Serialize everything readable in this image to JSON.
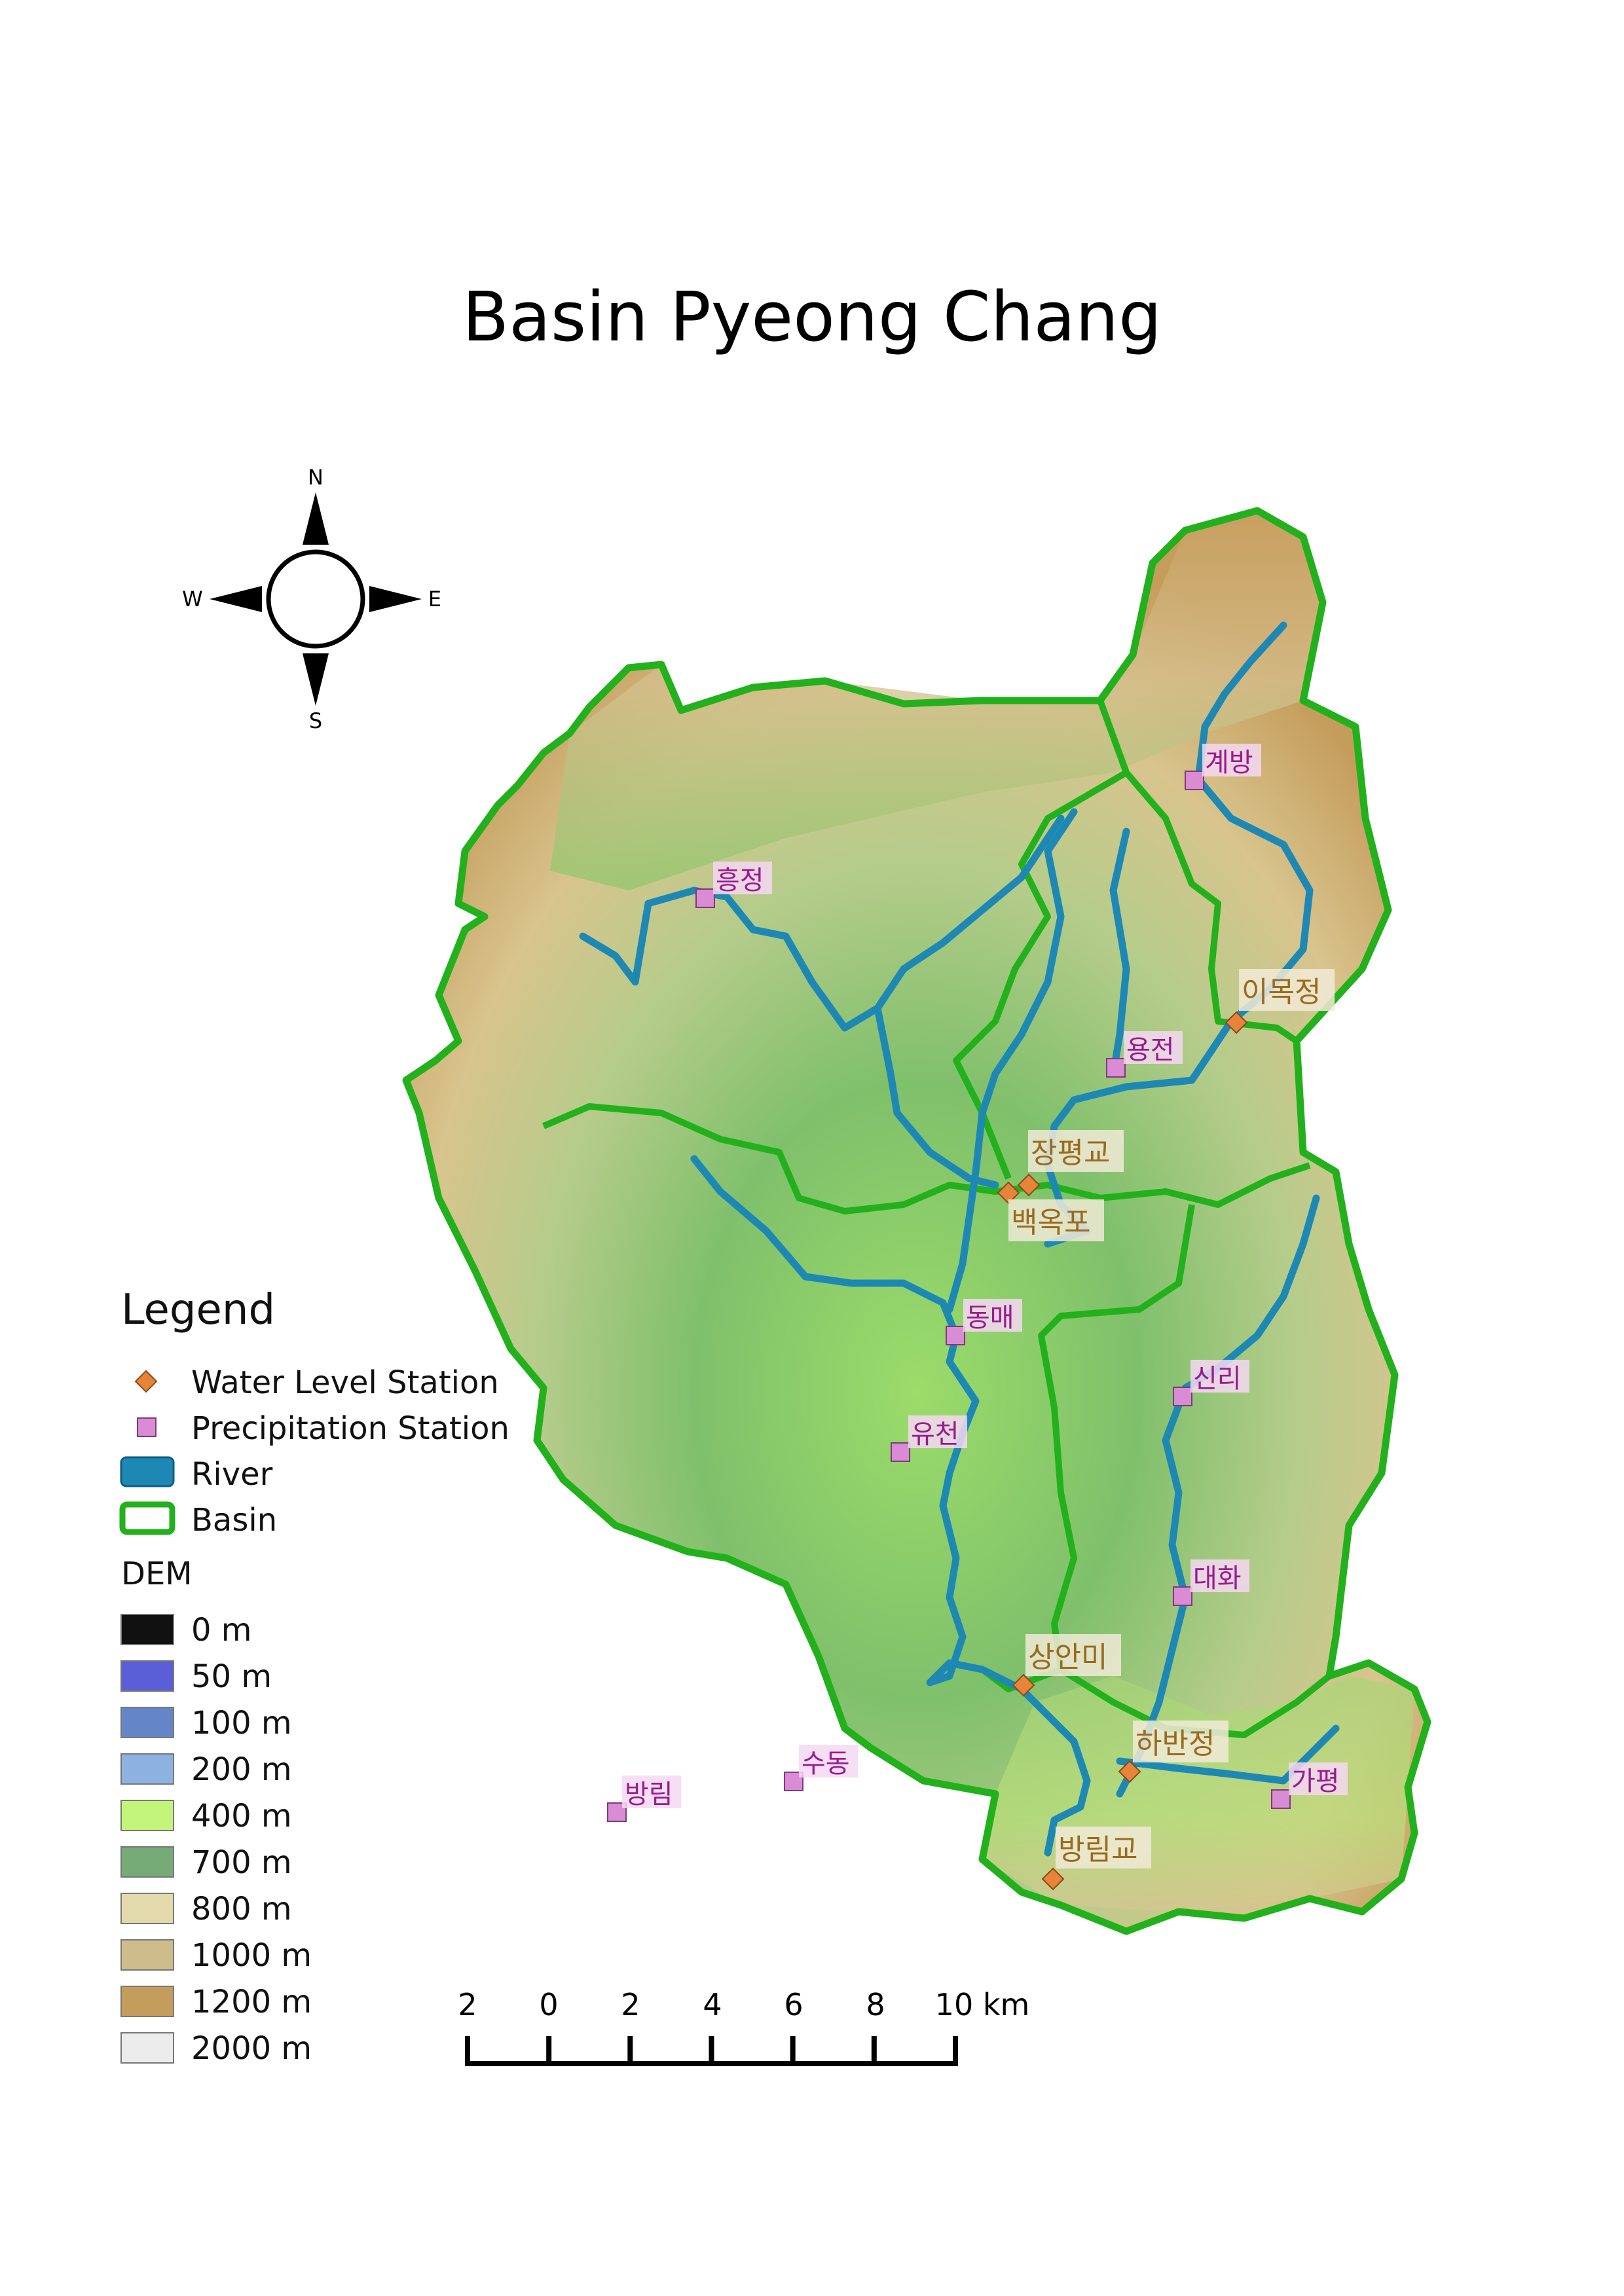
{
  "title": "Basin Pyeong Chang",
  "compass": {
    "n": "N",
    "e": "E",
    "s": "S",
    "w": "W"
  },
  "legend": {
    "title": "Legend",
    "items": [
      {
        "key": "water",
        "label": "Water Level Station",
        "color": "#e8833a"
      },
      {
        "key": "precip",
        "label": "Precipitation Station",
        "color": "#d98bd4"
      },
      {
        "key": "river",
        "label": "River",
        "color": "#1e88b4"
      },
      {
        "key": "basin",
        "label": "Basin",
        "color": "#22b11c"
      }
    ],
    "dem_title": "DEM",
    "dem": [
      {
        "label": "0 m",
        "color": "#111111"
      },
      {
        "label": "50 m",
        "color": "#5a5fd8"
      },
      {
        "label": "100 m",
        "color": "#6486c8"
      },
      {
        "label": "200 m",
        "color": "#8db2e2"
      },
      {
        "label": "400 m",
        "color": "#c2f57a"
      },
      {
        "label": "700 m",
        "color": "#76ab78"
      },
      {
        "label": "800 m",
        "color": "#e2d9ac"
      },
      {
        "label": "1000 m",
        "color": "#cdbd8b"
      },
      {
        "label": "1200 m",
        "color": "#c49c5b"
      },
      {
        "label": "2000 m",
        "color": "#ececec"
      }
    ]
  },
  "scale": {
    "labels": [
      "2",
      "0",
      "2",
      "4",
      "6",
      "8",
      "10 km"
    ]
  },
  "precipitation_stations": [
    {
      "id": "gyebang",
      "name": "계방"
    },
    {
      "id": "heungjeong",
      "name": "흥정"
    },
    {
      "id": "yongjeon",
      "name": "용전"
    },
    {
      "id": "dongmae",
      "name": "동매"
    },
    {
      "id": "sinri",
      "name": "신리"
    },
    {
      "id": "yucheon",
      "name": "유천"
    },
    {
      "id": "daehwa",
      "name": "대화"
    },
    {
      "id": "gapyeong",
      "name": "가평"
    },
    {
      "id": "sudong",
      "name": "수동"
    },
    {
      "id": "bangrim",
      "name": "방림"
    }
  ],
  "water_level_stations": [
    {
      "id": "imokjeong",
      "name": "이목정"
    },
    {
      "id": "jangpyeonggyo",
      "name": "장평교"
    },
    {
      "id": "baekokpo",
      "name": "백옥포"
    },
    {
      "id": "sanganmi",
      "name": "상안미"
    },
    {
      "id": "habanjeong",
      "name": "하반정"
    },
    {
      "id": "bangrimgyo",
      "name": "방림교"
    }
  ]
}
